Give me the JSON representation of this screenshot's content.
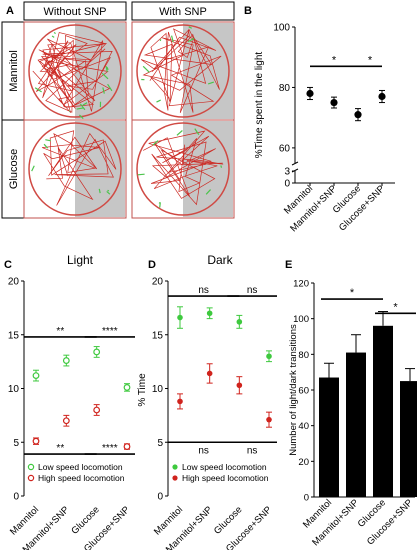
{
  "panels": {
    "A": "A",
    "B": "B",
    "C": "C",
    "D": "D",
    "E": "E"
  },
  "panel_a": {
    "col_headers": [
      "Without SNP",
      "With SNP"
    ],
    "row_labels": [
      "Mannitol",
      "Glucose"
    ]
  },
  "colors": {
    "low_speed": "#3ec93e",
    "high_speed": "#d0231d",
    "track_red": "#cc2a24",
    "track_green": "#4cc44c",
    "dark_half": "#c6c6c6",
    "bar": "#000000"
  },
  "chart_data": [
    {
      "id": "B",
      "type": "scatter",
      "title": "",
      "xlabel": "",
      "ylabel": "%Time spent in the light",
      "categories": [
        "Mannitol",
        "Mannitol+SNP",
        "Glucose",
        "Glucose+SNP"
      ],
      "values": [
        78,
        75,
        71,
        77
      ],
      "errors": [
        2,
        1.8,
        2,
        2
      ],
      "ylim": [
        0,
        100
      ],
      "axis_break": [
        3,
        55
      ],
      "yticks": [
        "100",
        "80",
        "60",
        "3",
        "0"
      ],
      "significance": [
        {
          "from": 0,
          "to": 2,
          "label": "*"
        },
        {
          "from": 2,
          "to": 3,
          "label": "*"
        }
      ]
    },
    {
      "id": "C",
      "type": "scatter",
      "title": "Light",
      "xlabel": "",
      "ylabel": "",
      "categories": [
        "Mannitol",
        "Mannitol+SNP",
        "Glucose",
        "Glucose+SNP"
      ],
      "ylim": [
        0,
        20
      ],
      "yticks": [
        "0",
        "5",
        "10",
        "15",
        "20"
      ],
      "series": [
        {
          "name": "Low speed locomotion",
          "values": [
            11.2,
            12.6,
            13.4,
            10.1
          ],
          "errors": [
            0.5,
            0.5,
            0.5,
            0.35
          ],
          "marker": "open"
        },
        {
          "name": "High speed locomotion",
          "values": [
            5.1,
            7.0,
            8.0,
            4.6
          ],
          "errors": [
            0.3,
            0.5,
            0.5,
            0.25
          ],
          "marker": "open"
        }
      ],
      "significance": [
        {
          "from": 0,
          "to": 2,
          "y": 14.8,
          "label": "**"
        },
        {
          "from": 2,
          "to": 3,
          "y": 14.8,
          "label": "****"
        },
        {
          "from": 0,
          "to": 2,
          "y": 3.9,
          "label": "**"
        },
        {
          "from": 2,
          "to": 3,
          "y": 3.9,
          "label": "****"
        }
      ],
      "legend_position": "bottom-left"
    },
    {
      "id": "D",
      "type": "scatter",
      "title": "Dark",
      "xlabel": "",
      "ylabel": "% Time",
      "categories": [
        "Mannitol",
        "Mannitol+SNP",
        "Glucose",
        "Glucose+SNP"
      ],
      "ylim": [
        0,
        20
      ],
      "yticks": [
        "0",
        "5",
        "10",
        "15",
        "20"
      ],
      "series": [
        {
          "name": "Low speed locomotion",
          "values": [
            16.6,
            17.0,
            16.2,
            13.0
          ],
          "errors": [
            1.0,
            0.5,
            0.6,
            0.5
          ],
          "marker": "filled"
        },
        {
          "name": "High speed locomotion",
          "values": [
            8.8,
            11.4,
            10.3,
            7.1
          ],
          "errors": [
            0.7,
            0.9,
            0.8,
            0.7
          ],
          "marker": "filled"
        }
      ],
      "significance": [
        {
          "from": 0,
          "to": 2,
          "y": 18.6,
          "label": "ns"
        },
        {
          "from": 2,
          "to": 3,
          "y": 18.6,
          "label": "ns"
        },
        {
          "from": 0,
          "to": 2,
          "y": 5.0,
          "label": "ns"
        },
        {
          "from": 2,
          "to": 3,
          "y": 5.0,
          "label": "ns"
        }
      ],
      "legend_position": "bottom-left"
    },
    {
      "id": "E",
      "type": "bar",
      "title": "",
      "xlabel": "",
      "ylabel": "Number of light/dark transitions",
      "categories": [
        "Mannitol",
        "Mannitol+SNP",
        "Glucose",
        "Glucose+SNP"
      ],
      "values": [
        67,
        81,
        96,
        65
      ],
      "errors": [
        8,
        10,
        8,
        7
      ],
      "ylim": [
        0,
        120
      ],
      "yticks": [
        "0",
        "20",
        "40",
        "60",
        "80",
        "100",
        "120"
      ],
      "significance": [
        {
          "from": 0,
          "to": 2,
          "y": 111,
          "label": "*"
        },
        {
          "from": 2,
          "to": 3,
          "y": 103,
          "label": "*"
        }
      ]
    }
  ]
}
